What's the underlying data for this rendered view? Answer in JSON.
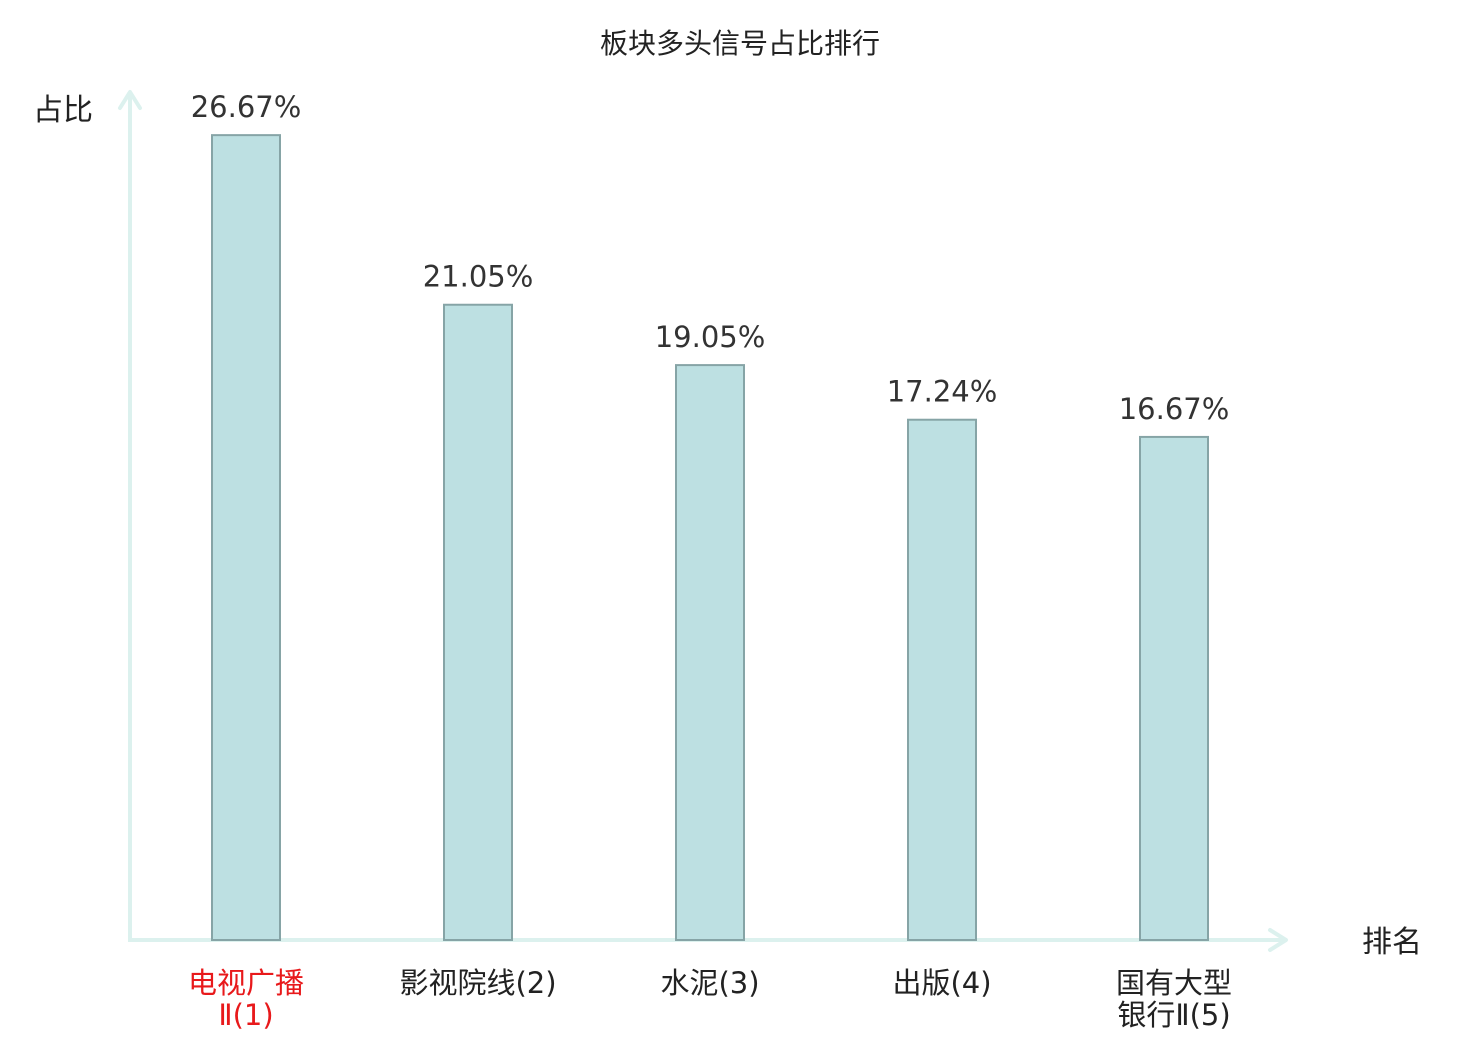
{
  "colors": {
    "bar_fill": "#bde0e2",
    "bar_stroke": "#86a4a6",
    "axis": "#dcf1ee",
    "text": "#222222",
    "highlight": "#e8191b"
  },
  "chart_data": {
    "type": "bar",
    "title": "板块多头信号占比排行",
    "xlabel": "排名",
    "ylabel": "占比",
    "ylim": [
      0,
      28
    ],
    "grid": false,
    "categories": [
      {
        "lines": [
          "电视广播",
          "Ⅱ(1)"
        ],
        "highlight": true
      },
      {
        "lines": [
          "影视院线(2)"
        ],
        "highlight": false
      },
      {
        "lines": [
          "水泥(3)"
        ],
        "highlight": false
      },
      {
        "lines": [
          "出版(4)"
        ],
        "highlight": false
      },
      {
        "lines": [
          "国有大型",
          "银行Ⅱ(5)"
        ],
        "highlight": false
      }
    ],
    "values": [
      26.67,
      21.05,
      19.05,
      17.24,
      16.67
    ],
    "value_labels": [
      "26.67%",
      "21.05%",
      "19.05%",
      "17.24%",
      "16.67%"
    ]
  }
}
